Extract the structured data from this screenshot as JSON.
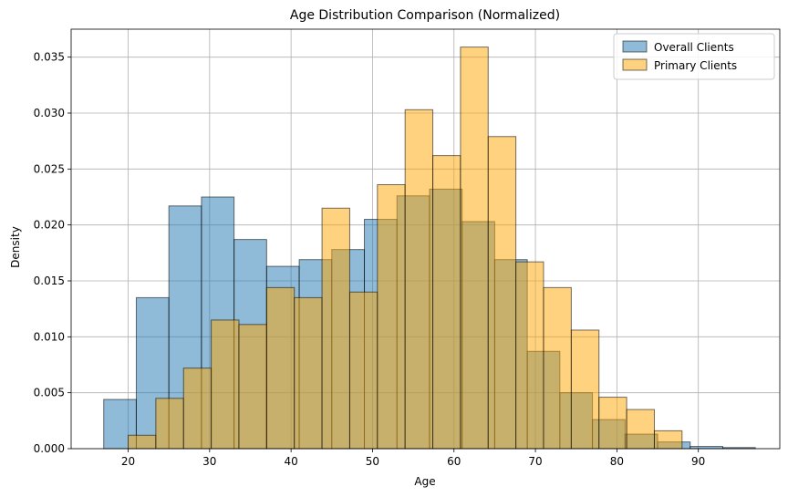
{
  "chart_data": {
    "type": "bar",
    "title": "Age Distribution Comparison (Normalized)",
    "xlabel": "Age",
    "ylabel": "Density",
    "xlim": [
      13,
      100
    ],
    "ylim": [
      0,
      0.0375
    ],
    "xticks": [
      20,
      30,
      40,
      50,
      60,
      70,
      80,
      90
    ],
    "yticks": [
      0.0,
      0.005,
      0.01,
      0.015,
      0.02,
      0.025,
      0.03,
      0.035
    ],
    "ytick_labels": [
      "0.000",
      "0.005",
      "0.010",
      "0.015",
      "0.020",
      "0.025",
      "0.030",
      "0.035"
    ],
    "grid": true,
    "legend_position": "top-right",
    "series": [
      {
        "name": "Overall Clients",
        "color": "#1f77b4",
        "opacity": 0.5,
        "bins": [
          {
            "x0": 17.0,
            "x1": 21.0,
            "value": 0.0044
          },
          {
            "x0": 21.0,
            "x1": 25.0,
            "value": 0.0135
          },
          {
            "x0": 25.0,
            "x1": 29.0,
            "value": 0.0217
          },
          {
            "x0": 29.0,
            "x1": 33.0,
            "value": 0.0225
          },
          {
            "x0": 33.0,
            "x1": 37.0,
            "value": 0.0187
          },
          {
            "x0": 37.0,
            "x1": 41.0,
            "value": 0.0163
          },
          {
            "x0": 41.0,
            "x1": 45.0,
            "value": 0.0169
          },
          {
            "x0": 45.0,
            "x1": 49.0,
            "value": 0.0178
          },
          {
            "x0": 49.0,
            "x1": 53.0,
            "value": 0.0205
          },
          {
            "x0": 53.0,
            "x1": 57.0,
            "value": 0.0226
          },
          {
            "x0": 57.0,
            "x1": 61.0,
            "value": 0.0232
          },
          {
            "x0": 61.0,
            "x1": 65.0,
            "value": 0.0203
          },
          {
            "x0": 65.0,
            "x1": 69.0,
            "value": 0.0169
          },
          {
            "x0": 69.0,
            "x1": 73.0,
            "value": 0.0087
          },
          {
            "x0": 73.0,
            "x1": 77.0,
            "value": 0.005
          },
          {
            "x0": 77.0,
            "x1": 81.0,
            "value": 0.0026
          },
          {
            "x0": 81.0,
            "x1": 85.0,
            "value": 0.0013
          },
          {
            "x0": 85.0,
            "x1": 89.0,
            "value": 0.0006
          },
          {
            "x0": 89.0,
            "x1": 93.0,
            "value": 0.0002
          },
          {
            "x0": 93.0,
            "x1": 97.0,
            "value": 0.0001
          }
        ]
      },
      {
        "name": "Primary Clients",
        "color": "#ffa500",
        "opacity": 0.5,
        "bins": [
          {
            "x0": 20.0,
            "x1": 23.4,
            "value": 0.0012
          },
          {
            "x0": 23.4,
            "x1": 26.8,
            "value": 0.0045
          },
          {
            "x0": 26.8,
            "x1": 30.2,
            "value": 0.0072
          },
          {
            "x0": 30.2,
            "x1": 33.6,
            "value": 0.0115
          },
          {
            "x0": 33.6,
            "x1": 37.0,
            "value": 0.0111
          },
          {
            "x0": 37.0,
            "x1": 40.4,
            "value": 0.0144
          },
          {
            "x0": 40.4,
            "x1": 43.8,
            "value": 0.0135
          },
          {
            "x0": 43.8,
            "x1": 47.2,
            "value": 0.0215
          },
          {
            "x0": 47.2,
            "x1": 50.6,
            "value": 0.014
          },
          {
            "x0": 50.6,
            "x1": 54.0,
            "value": 0.0236
          },
          {
            "x0": 54.0,
            "x1": 57.4,
            "value": 0.0303
          },
          {
            "x0": 57.4,
            "x1": 60.8,
            "value": 0.0262
          },
          {
            "x0": 60.8,
            "x1": 64.2,
            "value": 0.0359
          },
          {
            "x0": 64.2,
            "x1": 67.6,
            "value": 0.0279
          },
          {
            "x0": 67.6,
            "x1": 71.0,
            "value": 0.0167
          },
          {
            "x0": 71.0,
            "x1": 74.4,
            "value": 0.0144
          },
          {
            "x0": 74.4,
            "x1": 77.8,
            "value": 0.0106
          },
          {
            "x0": 77.8,
            "x1": 81.2,
            "value": 0.0046
          },
          {
            "x0": 81.2,
            "x1": 84.6,
            "value": 0.0035
          },
          {
            "x0": 84.6,
            "x1": 88.0,
            "value": 0.0016
          }
        ]
      }
    ]
  }
}
